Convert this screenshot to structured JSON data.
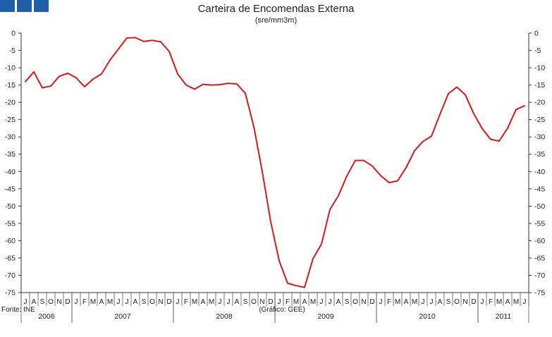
{
  "header": {
    "title": "Carteira de Encomendas Externa",
    "subtitle": "(sre/mm3m)"
  },
  "footer": {
    "source": "Fonte: INE",
    "credit": "(Gráfico: GEE)"
  },
  "chart_data": {
    "type": "line",
    "title": "Carteira de Encomendas Externa",
    "subtitle": "(sre/mm3m)",
    "ylim": [
      -75,
      0
    ],
    "yticks": [
      0,
      -5,
      -10,
      -15,
      -20,
      -25,
      -30,
      -35,
      -40,
      -45,
      -50,
      -55,
      -60,
      -65,
      -70,
      -75
    ],
    "grid": false,
    "legend": "none",
    "line_color": "#d7191c",
    "month_labels": [
      "J",
      "A",
      "S",
      "O",
      "N",
      "D",
      "J",
      "F",
      "M",
      "A",
      "M",
      "J",
      "J",
      "A",
      "S",
      "O",
      "N",
      "D",
      "J",
      "F",
      "M",
      "A",
      "M",
      "J",
      "J",
      "A",
      "S",
      "O",
      "N",
      "D",
      "J",
      "F",
      "M",
      "A",
      "M",
      "J",
      "J",
      "A",
      "S",
      "O",
      "N",
      "D",
      "J",
      "F",
      "M",
      "A",
      "M",
      "J",
      "J",
      "A",
      "S",
      "O",
      "N",
      "D",
      "J",
      "F",
      "M",
      "A",
      "M",
      "J"
    ],
    "year_groups": [
      {
        "label": "2006",
        "start": 0,
        "count": 6
      },
      {
        "label": "2007",
        "start": 6,
        "count": 12
      },
      {
        "label": "2008",
        "start": 18,
        "count": 12
      },
      {
        "label": "2009",
        "start": 30,
        "count": 12
      },
      {
        "label": "2010",
        "start": 42,
        "count": 12
      },
      {
        "label": "2011",
        "start": 54,
        "count": 6
      }
    ],
    "series": [
      {
        "values": [
          -14,
          -11.2,
          -15.8,
          -15.3,
          -12.5,
          -11.6,
          -12.9,
          -15.5,
          -13.3,
          -11.8,
          -7.8,
          -4.6,
          -1.4,
          -1.3,
          -2.4,
          -2.1,
          -2.5,
          -5.3,
          -11.8,
          -15,
          -16.2,
          -14.8,
          -15,
          -14.9,
          -14.5,
          -14.7,
          -17.4,
          -27,
          -40,
          -54.5,
          -65.8,
          -72.3,
          -73,
          -73.5,
          -65.2,
          -61,
          -51,
          -47,
          -41.3,
          -36.8,
          -36.8,
          -38.4,
          -41.2,
          -43.2,
          -42.7,
          -38.9,
          -34,
          -31.3,
          -29.8,
          -23.5,
          -17.5,
          -15.6,
          -17.8,
          -23.3,
          -27.6,
          -30.7,
          -31.2,
          -27.5,
          -22.1,
          -21
        ]
      }
    ]
  }
}
